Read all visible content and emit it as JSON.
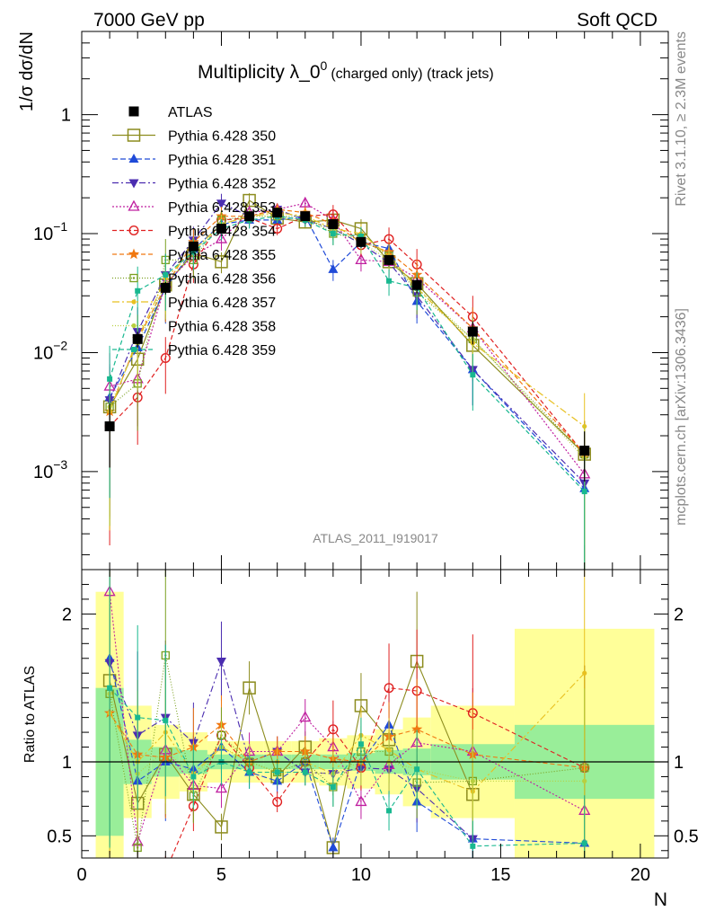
{
  "header": {
    "left": "7000 GeV pp",
    "right": "Soft QCD"
  },
  "side_text": {
    "rivet": "Rivet 3.1.10, ≥ 2.3M events",
    "mcplots": "mcplots.cern.ch [arXiv:1306.3436]"
  },
  "chart_data": [
    {
      "type": "scatter",
      "panel": "main",
      "title_main": "Multiplicity λ_0",
      "title_sup": "0",
      "title_sub": "(charged only) (track jets)",
      "ylabel": "1/σ dσ/dN",
      "yscale": "log",
      "ylim": [
        0.00015,
        5
      ],
      "xlim": [
        0,
        21
      ],
      "y_ticks": [
        {
          "v": 0.001,
          "base": "10",
          "exp": "−3"
        },
        {
          "v": 0.01,
          "base": "10",
          "exp": "−2"
        },
        {
          "v": 0.1,
          "base": "10",
          "exp": "−1"
        },
        {
          "v": 1,
          "base": "1",
          "exp": ""
        }
      ],
      "analysis_label": "ATLAS_2011_I919017",
      "legend_position": "upper-left",
      "data": {
        "name": "ATLAS",
        "color": "#000000",
        "x": [
          1,
          2,
          3,
          4,
          5,
          6,
          7,
          8,
          9,
          10,
          11,
          12,
          14,
          18
        ],
        "y": [
          0.0024,
          0.013,
          0.035,
          0.078,
          0.11,
          0.14,
          0.15,
          0.14,
          0.12,
          0.085,
          0.06,
          0.037,
          0.015,
          0.0015
        ],
        "xerr": [
          0.5,
          0.5,
          0.5,
          0.5,
          0.5,
          0.5,
          0.5,
          0.5,
          0.5,
          0.5,
          0.5,
          0.5,
          1.5,
          2.5
        ],
        "yerr_rel": [
          0.55,
          0.15,
          0.12,
          0.08,
          0.06,
          0.05,
          0.05,
          0.05,
          0.06,
          0.08,
          0.1,
          0.15,
          0.22,
          0.45
        ],
        "band_green_rel": [
          0.5,
          0.15,
          0.1,
          0.08,
          0.05,
          0.05,
          0.05,
          0.05,
          0.05,
          0.06,
          0.08,
          0.09,
          0.12,
          0.25
        ],
        "band_yellow_rel": [
          1.15,
          0.38,
          0.25,
          0.2,
          0.14,
          0.14,
          0.14,
          0.14,
          0.16,
          0.18,
          0.22,
          0.3,
          0.38,
          0.9
        ]
      },
      "series": [
        {
          "name": "Pythia 6.428 350",
          "color": "#8c8c1e",
          "marker": "square-open",
          "dash": "solid",
          "x": [
            1,
            2,
            3,
            4,
            5,
            6,
            7,
            8,
            9,
            10,
            11,
            12,
            14,
            18
          ],
          "y": [
            0.0035,
            0.0088,
            0.037,
            0.068,
            0.058,
            0.19,
            0.135,
            0.125,
            0.13,
            0.11,
            0.058,
            0.038,
            0.0115,
            0.0014
          ]
        },
        {
          "name": "Pythia 6.428 351",
          "color": "#1f4ad8",
          "marker": "triangle-up",
          "dash": "6,3",
          "x": [
            1,
            2,
            3,
            4,
            5,
            6,
            7,
            8,
            9,
            10,
            11,
            12,
            14,
            18
          ],
          "y": [
            0.0042,
            0.011,
            0.035,
            0.074,
            0.12,
            0.13,
            0.13,
            0.14,
            0.05,
            0.085,
            0.075,
            0.027,
            0.0072,
            0.00072
          ]
        },
        {
          "name": "Pythia 6.428 352",
          "color": "#4b2db0",
          "marker": "triangle-down",
          "dash": "7,3,2,3",
          "x": [
            1,
            2,
            3,
            4,
            5,
            6,
            7,
            8,
            9,
            10,
            11,
            12,
            14,
            18
          ],
          "y": [
            0.004,
            0.015,
            0.045,
            0.088,
            0.18,
            0.14,
            0.16,
            0.13,
            0.11,
            0.082,
            0.057,
            0.03,
            0.0072,
            0.0008
          ]
        },
        {
          "name": "Pythia 6.428 353",
          "color": "#c020a0",
          "marker": "triangle-up-open",
          "dash": "2,2",
          "x": [
            1,
            2,
            3,
            4,
            5,
            6,
            7,
            8,
            9,
            10,
            11,
            12,
            14,
            18
          ],
          "y": [
            0.0052,
            0.006,
            0.038,
            0.065,
            0.09,
            0.15,
            0.16,
            0.18,
            0.13,
            0.06,
            0.058,
            0.042,
            0.016,
            0.00095
          ]
        },
        {
          "name": "Pythia 6.428 354",
          "color": "#e02020",
          "marker": "circle-open",
          "dash": "5,3",
          "x": [
            1,
            2,
            3,
            4,
            5,
            6,
            7,
            8,
            9,
            10,
            11,
            12,
            14,
            18
          ],
          "y": [
            0.0024,
            0.0042,
            0.009,
            0.055,
            0.13,
            0.135,
            0.11,
            0.14,
            0.145,
            0.08,
            0.09,
            0.055,
            0.02,
            0.0014
          ]
        },
        {
          "name": "Pythia 6.428 355",
          "color": "#f07810",
          "marker": "star",
          "dash": "5,3",
          "x": [
            1,
            2,
            3,
            4,
            5,
            6,
            7,
            8,
            9,
            10,
            11,
            12,
            14,
            18
          ],
          "y": [
            0.0032,
            0.013,
            0.036,
            0.085,
            0.14,
            0.14,
            0.16,
            0.15,
            0.12,
            0.085,
            0.07,
            0.045,
            0.016,
            0.0014
          ]
        },
        {
          "name": "Pythia 6.428 356",
          "color": "#7aa020",
          "marker": "square-dot",
          "dash": "1,2",
          "x": [
            1,
            2,
            3,
            4,
            5,
            6,
            7,
            8,
            9,
            10,
            11,
            12,
            14,
            18
          ],
          "y": [
            0.0035,
            0.0055,
            0.06,
            0.06,
            0.13,
            0.14,
            0.14,
            0.14,
            0.1,
            0.09,
            0.065,
            0.032,
            0.013,
            0.0014
          ]
        },
        {
          "name": "Pythia 6.428 357",
          "color": "#e8c020",
          "marker": "dot",
          "dash": "8,3,2,3",
          "x": [
            1,
            2,
            3,
            4,
            5,
            6,
            7,
            8,
            9,
            10,
            11,
            12,
            14,
            18
          ],
          "y": [
            0.0032,
            0.013,
            0.042,
            0.072,
            0.12,
            0.14,
            0.15,
            0.14,
            0.11,
            0.1,
            0.065,
            0.035,
            0.012,
            0.0024
          ]
        },
        {
          "name": "Pythia 6.428 358",
          "color": "#b8d040",
          "marker": "dot",
          "dash": "1,2",
          "x": [
            1,
            2,
            3,
            4,
            5,
            6,
            7,
            8,
            9,
            10,
            11,
            12,
            14,
            18
          ],
          "y": [
            0.0035,
            0.012,
            0.038,
            0.07,
            0.12,
            0.14,
            0.14,
            0.13,
            0.11,
            0.085,
            0.06,
            0.035,
            0.013,
            0.0013
          ]
        },
        {
          "name": "Pythia 6.428 359",
          "color": "#18b890",
          "marker": "square-small",
          "dash": "5,3",
          "x": [
            1,
            2,
            3,
            4,
            5,
            6,
            7,
            8,
            9,
            10,
            11,
            12,
            14,
            18
          ],
          "y": [
            0.006,
            0.033,
            0.045,
            0.07,
            0.11,
            0.13,
            0.14,
            0.13,
            0.1,
            0.095,
            0.04,
            0.035,
            0.0065,
            0.00068
          ]
        }
      ]
    },
    {
      "type": "scatter",
      "panel": "ratio",
      "ylabel": "Ratio to ATLAS",
      "xlabel": "N",
      "ylim": [
        0.35,
        2.3
      ],
      "xlim": [
        0,
        21
      ],
      "y_ticks": [
        0.5,
        1,
        2
      ],
      "x_ticks": [
        0,
        5,
        10,
        15,
        20
      ],
      "series_ratio": [
        [
          1.55,
          0.72,
          1.05,
          0.78,
          0.56,
          1.5,
          0.9,
          1.1,
          0.42,
          1.38,
          1.15,
          1.68,
          0.78,
          null
        ],
        [
          1.7,
          0.87,
          1.0,
          0.95,
          1.1,
          0.93,
          0.87,
          1.0,
          0.42,
          1.0,
          1.25,
          0.73,
          0.48,
          0.45
        ],
        [
          1.67,
          1.18,
          1.3,
          1.13,
          1.68,
          1.0,
          1.07,
          0.93,
          0.92,
          0.96,
          0.95,
          0.82,
          0.48,
          null
        ],
        [
          2.15,
          0.46,
          1.08,
          0.84,
          0.82,
          1.07,
          1.07,
          1.3,
          1.1,
          0.73,
          0.98,
          1.13,
          1.07,
          0.67
        ],
        [
          null,
          null,
          0.26,
          0.7,
          1.18,
          0.96,
          0.73,
          1.0,
          1.22,
          0.96,
          1.5,
          1.48,
          1.33,
          0.96
        ],
        [
          1.33,
          1.05,
          1.03,
          1.1,
          1.25,
          1.0,
          1.07,
          1.07,
          1.02,
          1.0,
          1.17,
          1.22,
          1.05,
          0.96
        ],
        [
          1.46,
          0.42,
          1.72,
          0.77,
          1.18,
          1.0,
          0.93,
          1.0,
          0.83,
          1.07,
          1.07,
          0.86,
          0.87,
          0.96
        ],
        [
          1.33,
          1.0,
          1.2,
          0.92,
          1.1,
          1.0,
          1.0,
          1.0,
          0.92,
          1.18,
          1.08,
          0.95,
          0.8,
          1.6
        ],
        [
          1.46,
          0.92,
          1.08,
          0.9,
          1.1,
          1.0,
          0.93,
          0.93,
          0.92,
          1.0,
          1.0,
          0.95,
          0.87,
          0.87
        ],
        [
          1.5,
          1.3,
          1.28,
          0.9,
          1.0,
          0.93,
          0.93,
          0.93,
          0.83,
          1.12,
          0.67,
          0.95,
          0.43,
          0.45
        ]
      ]
    }
  ]
}
